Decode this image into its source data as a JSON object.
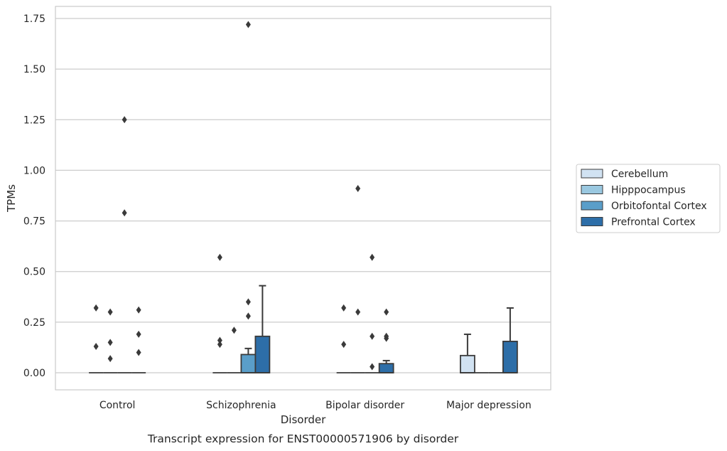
{
  "chart_data": {
    "type": "box",
    "xlabel": "Disorder",
    "ylabel": "TPMs",
    "caption": "Transcript expression for ENST00000571906 by disorder",
    "ylim": [
      -0.085,
      1.81
    ],
    "yticks": [
      "0.00",
      "0.25",
      "0.50",
      "0.75",
      "1.00",
      "1.25",
      "1.50",
      "1.75"
    ],
    "ytick_values": [
      0,
      0.25,
      0.5,
      0.75,
      1.0,
      1.25,
      1.5,
      1.75
    ],
    "grid": "horizontal",
    "legend_position": "right",
    "categories": [
      "Control",
      "Schizophrenia",
      "Bipolar disorder",
      "Major depression"
    ],
    "series": [
      {
        "name": "Cerebellum",
        "color": "#d1e2f2",
        "boxes": [
          {
            "q1": 0,
            "median": 0,
            "q3": 0,
            "whisker_low": 0,
            "whisker_high": 0,
            "outliers": [
              0.13,
              0.32
            ]
          },
          {
            "q1": 0,
            "median": 0,
            "q3": 0,
            "whisker_low": 0,
            "whisker_high": 0,
            "outliers": [
              0.14,
              0.16,
              0.57
            ]
          },
          {
            "q1": 0,
            "median": 0,
            "q3": 0,
            "whisker_low": 0,
            "whisker_high": 0,
            "outliers": [
              0.14,
              0.32
            ]
          },
          {
            "q1": 0,
            "median": 0,
            "q3": 0.085,
            "whisker_low": 0,
            "whisker_high": 0.19,
            "outliers": []
          }
        ]
      },
      {
        "name": "Hipppocampus",
        "color": "#9ac8e0",
        "boxes": [
          {
            "q1": 0,
            "median": 0,
            "q3": 0,
            "whisker_low": 0,
            "whisker_high": 0,
            "outliers": [
              0.07,
              0.15,
              0.3
            ]
          },
          {
            "q1": 0,
            "median": 0,
            "q3": 0,
            "whisker_low": 0,
            "whisker_high": 0,
            "outliers": [
              0.21
            ]
          },
          {
            "q1": 0,
            "median": 0,
            "q3": 0,
            "whisker_low": 0,
            "whisker_high": 0,
            "outliers": [
              0.3,
              0.91
            ]
          },
          {
            "q1": 0,
            "median": 0,
            "q3": 0,
            "whisker_low": 0,
            "whisker_high": 0,
            "outliers": []
          }
        ]
      },
      {
        "name": "Orbitofontal Cortex",
        "color": "#5a9ec9",
        "boxes": [
          {
            "q1": 0,
            "median": 0,
            "q3": 0,
            "whisker_low": 0,
            "whisker_high": 0,
            "outliers": [
              0.79,
              1.25
            ]
          },
          {
            "q1": 0,
            "median": 0,
            "q3": 0.09,
            "whisker_low": 0,
            "whisker_high": 0.12,
            "outliers": [
              0.28,
              0.35,
              1.72
            ]
          },
          {
            "q1": 0,
            "median": 0,
            "q3": 0,
            "whisker_low": 0,
            "whisker_high": 0,
            "outliers": [
              0.03,
              0.18,
              0.57
            ]
          },
          {
            "q1": 0,
            "median": 0,
            "q3": 0,
            "whisker_low": 0,
            "whisker_high": 0,
            "outliers": []
          }
        ]
      },
      {
        "name": "Prefrontal Cortex",
        "color": "#2d6ea8",
        "boxes": [
          {
            "q1": 0,
            "median": 0,
            "q3": 0,
            "whisker_low": 0,
            "whisker_high": 0,
            "outliers": [
              0.1,
              0.19,
              0.31
            ]
          },
          {
            "q1": 0,
            "median": 0,
            "q3": 0.18,
            "whisker_low": 0,
            "whisker_high": 0.43,
            "outliers": []
          },
          {
            "q1": 0,
            "median": 0,
            "q3": 0.045,
            "whisker_low": 0,
            "whisker_high": 0.06,
            "outliers": [
              0.17,
              0.18,
              0.3
            ]
          },
          {
            "q1": 0,
            "median": 0,
            "q3": 0.155,
            "whisker_low": 0,
            "whisker_high": 0.32,
            "outliers": []
          }
        ]
      }
    ]
  }
}
